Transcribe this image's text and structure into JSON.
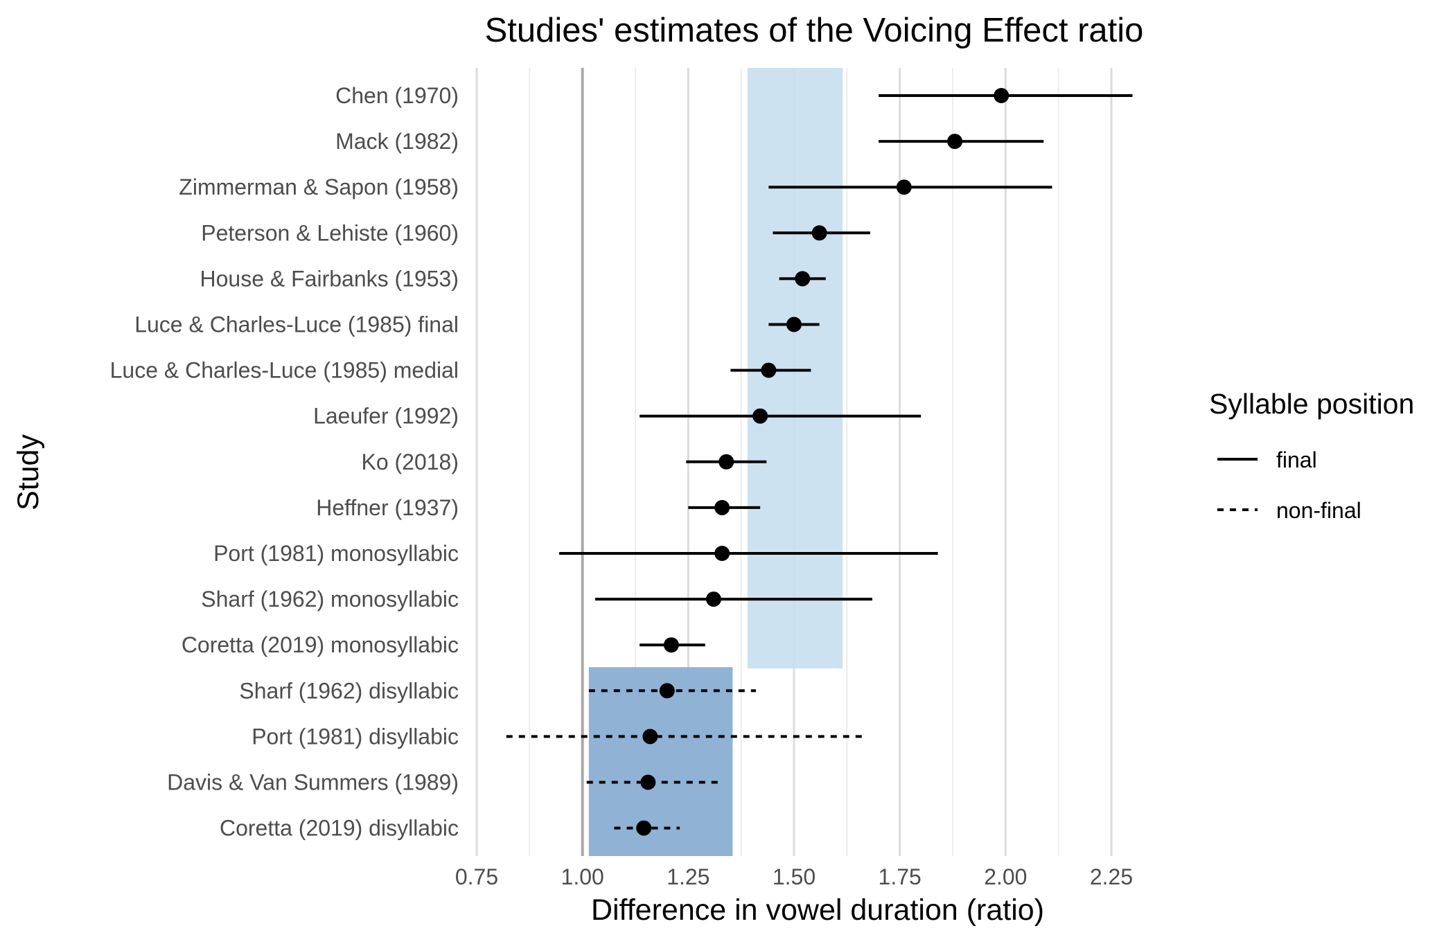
{
  "chart_data": {
    "type": "scatter",
    "title": "Studies' estimates of the Voicing Effect ratio",
    "xlabel": "Difference in vowel duration (ratio)",
    "ylabel": "Study",
    "xlim": [
      0.75,
      2.3
    ],
    "x_ticks": [
      "0.75",
      "1.00",
      "1.25",
      "1.50",
      "1.75",
      "2.00",
      "2.25"
    ],
    "x_tick_values": [
      0.75,
      1.0,
      1.25,
      1.5,
      1.75,
      2.0,
      2.25
    ],
    "reference_line": 1.0,
    "grid": true,
    "legend": {
      "title": "Syllable position",
      "placement": "right",
      "items": [
        {
          "label": "final",
          "linetype": "solid"
        },
        {
          "label": "non-final",
          "linetype": "dashed"
        }
      ]
    },
    "bands": [
      {
        "group": "final",
        "xmin": 1.39,
        "xmax": 1.615,
        "color": "#c6dfee"
      },
      {
        "group": "non-final",
        "xmin": 1.015,
        "xmax": 1.355,
        "color": "#8aaed3"
      }
    ],
    "studies": [
      {
        "label": "Chen (1970)",
        "estimate": 1.99,
        "lower": 1.7,
        "upper": 2.3,
        "position": "final"
      },
      {
        "label": "Mack (1982)",
        "estimate": 1.88,
        "lower": 1.7,
        "upper": 2.09,
        "position": "final"
      },
      {
        "label": "Zimmerman & Sapon (1958)",
        "estimate": 1.76,
        "lower": 1.44,
        "upper": 2.11,
        "position": "final"
      },
      {
        "label": "Peterson & Lehiste (1960)",
        "estimate": 1.56,
        "lower": 1.45,
        "upper": 1.68,
        "position": "final"
      },
      {
        "label": "House & Fairbanks (1953)",
        "estimate": 1.52,
        "lower": 1.465,
        "upper": 1.575,
        "position": "final"
      },
      {
        "label": "Luce & Charles-Luce (1985) final",
        "estimate": 1.5,
        "lower": 1.44,
        "upper": 1.56,
        "position": "final"
      },
      {
        "label": "Luce & Charles-Luce (1985) medial",
        "estimate": 1.44,
        "lower": 1.35,
        "upper": 1.54,
        "position": "final"
      },
      {
        "label": "Laeufer (1992)",
        "estimate": 1.42,
        "lower": 1.135,
        "upper": 1.8,
        "position": "final"
      },
      {
        "label": "Ko (2018)",
        "estimate": 1.34,
        "lower": 1.245,
        "upper": 1.435,
        "position": "final"
      },
      {
        "label": "Heffner (1937)",
        "estimate": 1.33,
        "lower": 1.25,
        "upper": 1.42,
        "position": "final"
      },
      {
        "label": "Port (1981) monosyllabic",
        "estimate": 1.33,
        "lower": 0.945,
        "upper": 1.84,
        "position": "final"
      },
      {
        "label": "Sharf (1962) monosyllabic",
        "estimate": 1.31,
        "lower": 1.03,
        "upper": 1.685,
        "position": "final"
      },
      {
        "label": "Coretta (2019) monosyllabic",
        "estimate": 1.21,
        "lower": 1.135,
        "upper": 1.29,
        "position": "final"
      },
      {
        "label": "Sharf (1962) disyllabic",
        "estimate": 1.2,
        "lower": 1.015,
        "upper": 1.41,
        "position": "non-final"
      },
      {
        "label": "Port (1981) disyllabic",
        "estimate": 1.16,
        "lower": 0.82,
        "upper": 1.67,
        "position": "non-final"
      },
      {
        "label": "Davis & Van Summers (1989)",
        "estimate": 1.155,
        "lower": 1.01,
        "upper": 1.325,
        "position": "non-final"
      },
      {
        "label": "Coretta (2019) disyllabic",
        "estimate": 1.145,
        "lower": 1.075,
        "upper": 1.23,
        "position": "non-final"
      }
    ]
  }
}
